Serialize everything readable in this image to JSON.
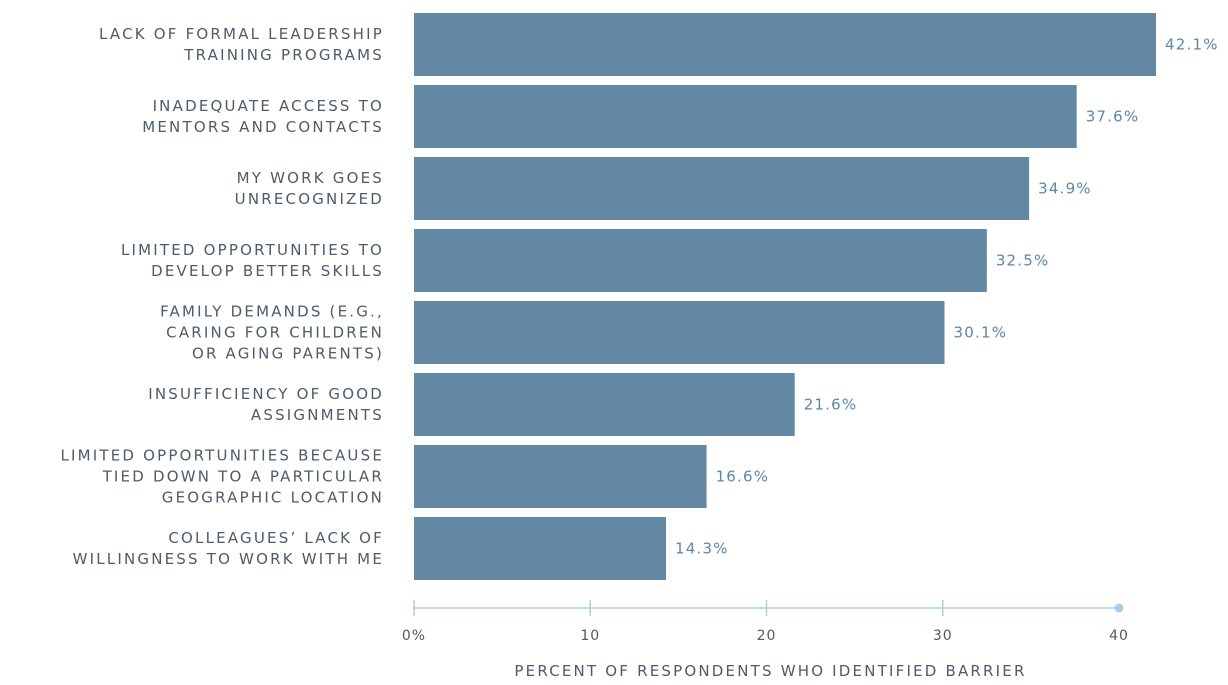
{
  "chart_data": {
    "type": "bar",
    "orientation": "horizontal",
    "categories": [
      [
        "LACK OF FORMAL LEADERSHIP",
        "TRAINING PROGRAMS"
      ],
      [
        "INADEQUATE ACCESS TO",
        "MENTORS AND CONTACTS"
      ],
      [
        "MY WORK GOES",
        "UNRECOGNIZED"
      ],
      [
        "LIMITED OPPORTUNITIES TO",
        "DEVELOP BETTER SKILLS"
      ],
      [
        "FAMILY DEMANDS (E.G.,",
        "CARING FOR CHILDREN",
        "OR AGING PARENTS)"
      ],
      [
        "INSUFFICIENCY OF GOOD",
        "ASSIGNMENTS"
      ],
      [
        "LIMITED OPPORTUNITIES BECAUSE",
        "TIED DOWN TO A PARTICULAR",
        "GEOGRAPHIC LOCATION"
      ],
      [
        "COLLEAGUES’ LACK OF",
        "WILLINGNESS TO WORK WITH ME"
      ]
    ],
    "values": [
      42.1,
      37.6,
      34.9,
      32.5,
      30.1,
      21.6,
      16.6,
      14.3
    ],
    "value_labels": [
      "42.1%",
      "37.6%",
      "34.9%",
      "32.5%",
      "30.1%",
      "21.6%",
      "16.6%",
      "14.3%"
    ],
    "xlim": [
      0,
      40
    ],
    "xticks": [
      {
        "value": 0,
        "label": "0%"
      },
      {
        "value": 10,
        "label": "10"
      },
      {
        "value": 20,
        "label": "20"
      },
      {
        "value": 30,
        "label": "30"
      },
      {
        "value": 40,
        "label": "40"
      }
    ],
    "xlabel": "PERCENT OF RESPONDENTS WHO IDENTIFIED BARRIER",
    "ylabel": "",
    "title": "",
    "grid": false,
    "legend": "none",
    "colors": {
      "bar": "#6388a5",
      "value_label": "#5d87a6",
      "axis": "#a9cfe2",
      "text": "#4f5a6b"
    }
  }
}
